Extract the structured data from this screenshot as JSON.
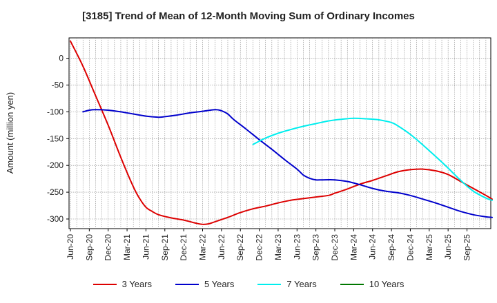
{
  "chart_data": {
    "type": "line",
    "title": "[3185]  Trend of Mean of 12-Month Moving Sum of Ordinary Incomes",
    "ylabel": "Amount (million yen)",
    "xlabel": "",
    "ylim": [
      -318,
      38
    ],
    "yticks": [
      0,
      -50,
      -100,
      -150,
      -200,
      -250,
      -300
    ],
    "x_labels": [
      "Jun-20",
      "Sep-20",
      "Dec-20",
      "Mar-21",
      "Jun-21",
      "Sep-21",
      "Dec-21",
      "Mar-22",
      "Jun-22",
      "Sep-22",
      "Dec-22",
      "Mar-23",
      "Jun-23",
      "Sep-23",
      "Dec-23",
      "Mar-24",
      "Jun-24",
      "Sep-24",
      "Dec-24",
      "Mar-25",
      "Jun-25",
      "Sep-25"
    ],
    "x_index_range": [
      0,
      63
    ],
    "grid": true,
    "legend_position": "bottom",
    "series": [
      {
        "name": "3 Years",
        "color": "#dd0000",
        "points": [
          [
            0,
            32
          ],
          [
            2,
            -15
          ],
          [
            4,
            -70
          ],
          [
            6,
            -125
          ],
          [
            8,
            -185
          ],
          [
            10,
            -240
          ],
          [
            11,
            -262
          ],
          [
            12,
            -278
          ],
          [
            13,
            -286
          ],
          [
            14,
            -292
          ],
          [
            16,
            -298
          ],
          [
            18,
            -302
          ],
          [
            19,
            -305
          ],
          [
            20,
            -308
          ],
          [
            21,
            -310
          ],
          [
            22,
            -309
          ],
          [
            23,
            -305
          ],
          [
            25,
            -297
          ],
          [
            27,
            -288
          ],
          [
            29,
            -281
          ],
          [
            31,
            -276
          ],
          [
            33,
            -270
          ],
          [
            35,
            -265
          ],
          [
            37,
            -262
          ],
          [
            39,
            -259
          ],
          [
            41,
            -256
          ],
          [
            42,
            -252
          ],
          [
            44,
            -244
          ],
          [
            46,
            -235
          ],
          [
            48,
            -228
          ],
          [
            50,
            -220
          ],
          [
            52,
            -212
          ],
          [
            54,
            -208
          ],
          [
            56,
            -207
          ],
          [
            58,
            -210
          ],
          [
            60,
            -217
          ],
          [
            62,
            -230
          ],
          [
            64,
            -243
          ],
          [
            66,
            -256
          ],
          [
            67,
            -263
          ]
        ]
      },
      {
        "name": "5 Years",
        "color": "#0000cc",
        "points": [
          [
            2,
            -100
          ],
          [
            3,
            -97
          ],
          [
            4,
            -96
          ],
          [
            6,
            -97
          ],
          [
            8,
            -100
          ],
          [
            10,
            -104
          ],
          [
            12,
            -108
          ],
          [
            14,
            -110
          ],
          [
            15,
            -109
          ],
          [
            17,
            -106
          ],
          [
            19,
            -102
          ],
          [
            21,
            -99
          ],
          [
            23,
            -96
          ],
          [
            24,
            -98
          ],
          [
            25,
            -104
          ],
          [
            26,
            -115
          ],
          [
            28,
            -133
          ],
          [
            30,
            -152
          ],
          [
            32,
            -170
          ],
          [
            34,
            -189
          ],
          [
            36,
            -207
          ],
          [
            37,
            -218
          ],
          [
            38,
            -224
          ],
          [
            39,
            -227
          ],
          [
            40,
            -227
          ],
          [
            42,
            -227
          ],
          [
            44,
            -230
          ],
          [
            46,
            -236
          ],
          [
            48,
            -243
          ],
          [
            50,
            -248
          ],
          [
            52,
            -251
          ],
          [
            54,
            -256
          ],
          [
            56,
            -263
          ],
          [
            58,
            -270
          ],
          [
            60,
            -278
          ],
          [
            62,
            -286
          ],
          [
            64,
            -292
          ],
          [
            66,
            -296
          ],
          [
            67,
            -297
          ]
        ]
      },
      {
        "name": "7 Years",
        "color": "#00eeee",
        "points": [
          [
            29,
            -161
          ],
          [
            31,
            -149
          ],
          [
            33,
            -140
          ],
          [
            35,
            -133
          ],
          [
            37,
            -127
          ],
          [
            39,
            -122
          ],
          [
            41,
            -117
          ],
          [
            43,
            -114
          ],
          [
            45,
            -112
          ],
          [
            47,
            -113
          ],
          [
            49,
            -115
          ],
          [
            51,
            -120
          ],
          [
            52,
            -126
          ],
          [
            54,
            -142
          ],
          [
            56,
            -162
          ],
          [
            58,
            -183
          ],
          [
            60,
            -205
          ],
          [
            62,
            -228
          ],
          [
            64,
            -248
          ],
          [
            66,
            -261
          ],
          [
            67,
            -265
          ]
        ]
      },
      {
        "name": "10 Years",
        "color": "#007700",
        "points": []
      }
    ]
  }
}
